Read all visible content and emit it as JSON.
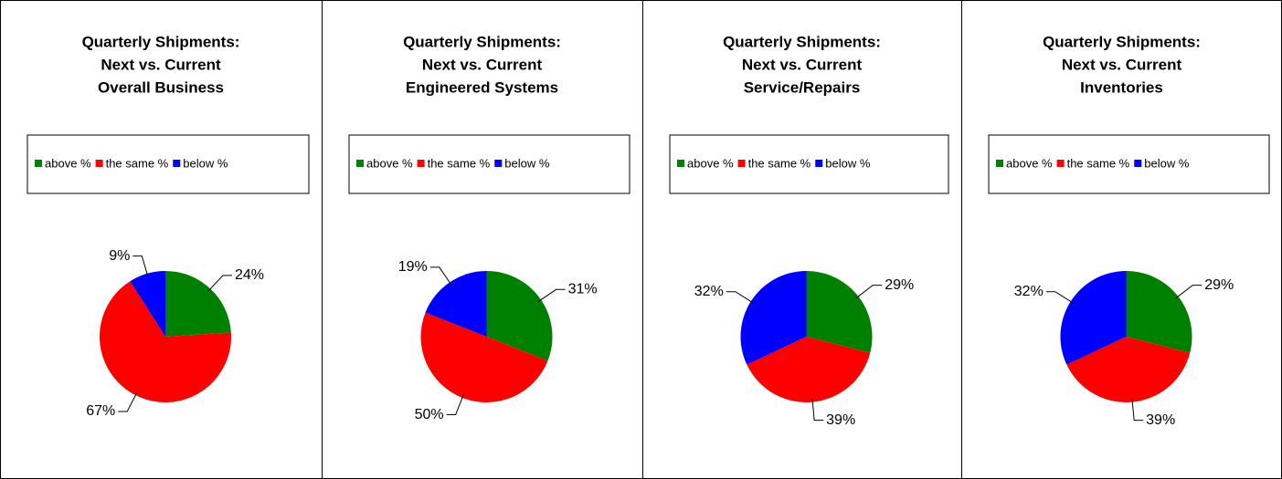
{
  "chart_data": [
    {
      "type": "pie",
      "title": [
        "Quarterly Shipments:",
        "Next vs. Current",
        "Overall Business"
      ],
      "categories": [
        "above %",
        "the same %",
        "below %"
      ],
      "values": [
        24,
        67,
        9
      ],
      "value_labels": [
        "24%",
        "67%",
        "9%"
      ],
      "colors": [
        "#008000",
        "#ff0000",
        "#0000ff"
      ],
      "legend": "top"
    },
    {
      "type": "pie",
      "title": [
        "Quarterly Shipments:",
        "Next vs. Current",
        "Engineered Systems"
      ],
      "categories": [
        "above %",
        "the same %",
        "below %"
      ],
      "values": [
        31,
        50,
        19
      ],
      "value_labels": [
        "31%",
        "50%",
        "19%"
      ],
      "colors": [
        "#008000",
        "#ff0000",
        "#0000ff"
      ],
      "legend": "top"
    },
    {
      "type": "pie",
      "title": [
        "Quarterly Shipments:",
        "Next vs. Current",
        "Service/Repairs"
      ],
      "categories": [
        "above %",
        "the same %",
        "below %"
      ],
      "values": [
        29,
        39,
        32
      ],
      "value_labels": [
        "29%",
        "39%",
        "32%"
      ],
      "colors": [
        "#008000",
        "#ff0000",
        "#0000ff"
      ],
      "legend": "top"
    },
    {
      "type": "pie",
      "title": [
        "Quarterly Shipments:",
        "Next vs. Current",
        "Inventories"
      ],
      "categories": [
        "above %",
        "the same %",
        "below %"
      ],
      "values": [
        29,
        39,
        32
      ],
      "value_labels": [
        "29%",
        "39%",
        "32%"
      ],
      "colors": [
        "#008000",
        "#ff0000",
        "#0000ff"
      ],
      "legend": "top"
    }
  ]
}
